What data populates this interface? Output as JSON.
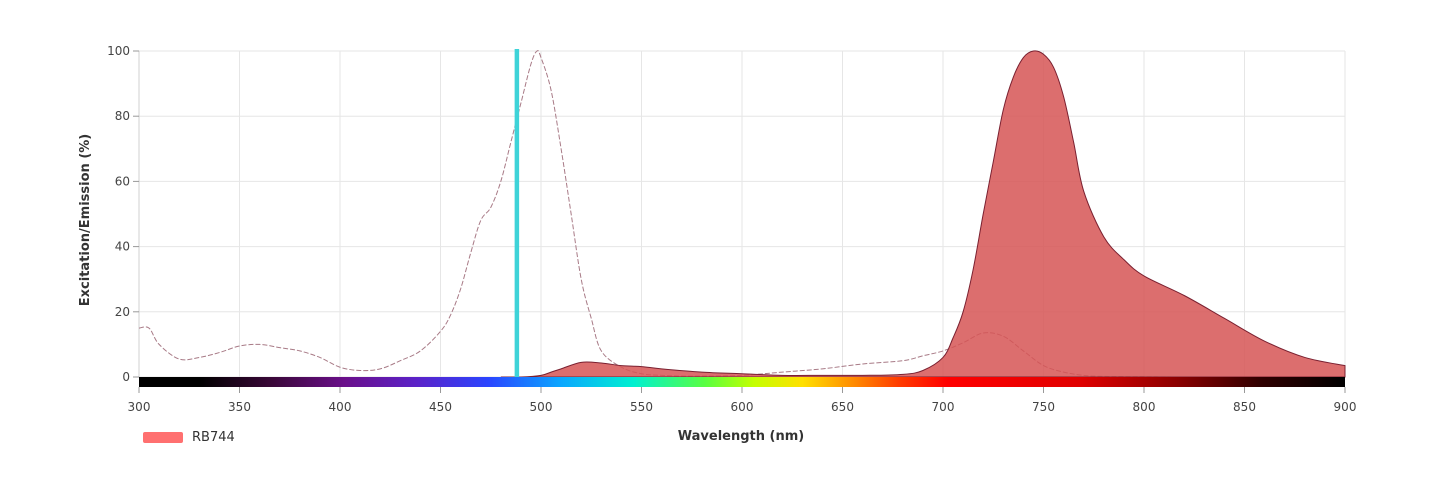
{
  "chart_data": {
    "type": "area",
    "xlabel": "Wavelength (nm)",
    "ylabel": "Excitation/Emission (%)",
    "xlim": [
      300,
      900
    ],
    "ylim": [
      0,
      100
    ],
    "x_ticks": [
      "300",
      "350",
      "400",
      "450",
      "500",
      "550",
      "600",
      "650",
      "700",
      "750",
      "800",
      "850",
      "900"
    ],
    "y_ticks": [
      "0",
      "20",
      "40",
      "60",
      "80",
      "100"
    ],
    "grid": true,
    "laser_line_nm": 488,
    "laser_color": "#3ed3d8",
    "series": [
      {
        "name": "RB744",
        "color": "#ff7070",
        "excitation": {
          "x": [
            300,
            305,
            310,
            320,
            330,
            340,
            350,
            360,
            370,
            380,
            390,
            400,
            410,
            420,
            430,
            440,
            450,
            455,
            460,
            465,
            470,
            475,
            480,
            485,
            490,
            495,
            498,
            500,
            505,
            510,
            515,
            520,
            525,
            530,
            540,
            550,
            560,
            570,
            580,
            600,
            620,
            640,
            660,
            680,
            690,
            700,
            710,
            720,
            730,
            740,
            750,
            760,
            770,
            780,
            800,
            820,
            850,
            900
          ],
          "y": [
            15,
            15,
            10,
            5.5,
            6,
            7.5,
            9.5,
            10,
            9,
            8,
            6,
            3,
            2,
            2.5,
            5,
            8,
            14,
            19,
            27,
            38,
            48,
            52,
            60,
            72,
            84,
            96,
            100,
            98,
            88,
            70,
            50,
            30,
            18,
            8,
            3,
            1,
            0.5,
            0.3,
            0.3,
            0.5,
            1.5,
            2.5,
            4,
            5,
            6.5,
            8,
            10.5,
            13.5,
            12.5,
            8,
            3.5,
            1.5,
            0.5,
            0.2,
            0.1,
            0,
            0,
            0
          ]
        },
        "emission": {
          "x": [
            480,
            490,
            500,
            505,
            510,
            520,
            530,
            540,
            550,
            560,
            580,
            600,
            620,
            640,
            660,
            680,
            690,
            700,
            705,
            710,
            715,
            720,
            725,
            730,
            735,
            740,
            745,
            750,
            755,
            760,
            765,
            770,
            780,
            790,
            800,
            820,
            840,
            860,
            880,
            900
          ],
          "y": [
            0,
            0,
            0.5,
            1.5,
            2.5,
            4.5,
            4.3,
            3.5,
            3.2,
            2.5,
            1.5,
            1,
            0.5,
            0.5,
            0.5,
            0.8,
            2,
            6,
            12,
            20,
            33,
            50,
            66,
            82,
            92,
            98,
            100,
            99,
            95,
            86,
            72,
            57,
            43,
            36,
            31,
            25,
            18,
            11,
            6,
            3.5
          ]
        }
      }
    ]
  }
}
